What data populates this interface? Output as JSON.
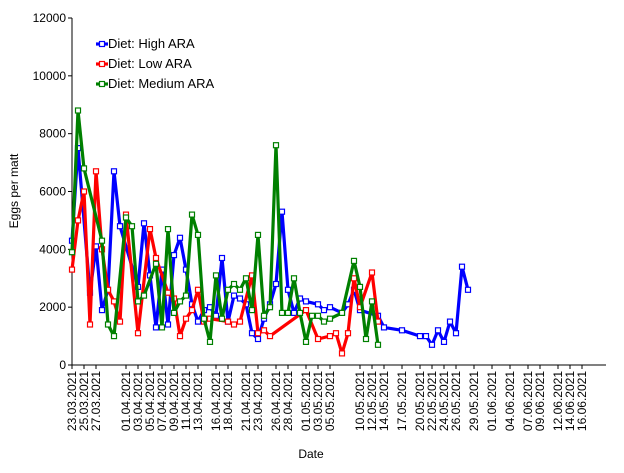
{
  "chart_data": {
    "type": "line",
    "xlabel": "Date",
    "ylabel": "Eggs per matt",
    "ylim": [
      0,
      12000
    ],
    "yticks": [
      0,
      2000,
      4000,
      6000,
      8000,
      10000,
      12000
    ],
    "xlim": [
      "2021-03-23",
      "2021-06-20"
    ],
    "xticks": [
      "23.03.2021",
      "25.03.2021",
      "27.03.2021",
      "01.04.2021",
      "03.04.2021",
      "05.04.2021",
      "07.04.2021",
      "09.04.2021",
      "11.04.2021",
      "13.04.2021",
      "16.04.2021",
      "18.04.2021",
      "21.04.2021",
      "23.04.2021",
      "26.04.2021",
      "28.04.2021",
      "01.05.2021",
      "03.05.2021",
      "05.05.2021",
      "10.05.2021",
      "12.05.2021",
      "14.05.2021",
      "17.05.2021",
      "20.05.2021",
      "22.05.2021",
      "24.05.2021",
      "26.05.2021",
      "29.05.2021",
      "01.06.2021",
      "04.06.2021",
      "07.06.2021",
      "09.06.2021",
      "12.06.2021",
      "14.06.2021",
      "16.06.2021"
    ],
    "grid": false,
    "legend_position": "top-left",
    "series": [
      {
        "name": "Diet: High ARA",
        "color": "#0000ff",
        "points": [
          [
            "2021-03-23",
            4300
          ],
          [
            "2021-03-24",
            7500
          ],
          [
            "2021-03-26",
            2500
          ],
          [
            "2021-03-27",
            4100
          ],
          [
            "2021-03-28",
            1900
          ],
          [
            "2021-03-29",
            2600
          ],
          [
            "2021-03-30",
            6700
          ],
          [
            "2021-03-31",
            4800
          ],
          [
            "2021-04-03",
            2700
          ],
          [
            "2021-04-04",
            4900
          ],
          [
            "2021-04-05",
            3100
          ],
          [
            "2021-04-06",
            1300
          ],
          [
            "2021-04-07",
            3300
          ],
          [
            "2021-04-08",
            1400
          ],
          [
            "2021-04-09",
            3800
          ],
          [
            "2021-04-10",
            4400
          ],
          [
            "2021-04-11",
            3300
          ],
          [
            "2021-04-12",
            2100
          ],
          [
            "2021-04-13",
            1500
          ],
          [
            "2021-04-14",
            1900
          ],
          [
            "2021-04-15",
            2000
          ],
          [
            "2021-04-16",
            1700
          ],
          [
            "2021-04-17",
            3700
          ],
          [
            "2021-04-18",
            1500
          ],
          [
            "2021-04-19",
            2400
          ],
          [
            "2021-04-20",
            2300
          ],
          [
            "2021-04-21",
            2100
          ],
          [
            "2021-04-22",
            1100
          ],
          [
            "2021-04-23",
            900
          ],
          [
            "2021-04-24",
            1600
          ],
          [
            "2021-04-25",
            2100
          ],
          [
            "2021-04-26",
            2800
          ],
          [
            "2021-04-27",
            5300
          ],
          [
            "2021-04-28",
            2600
          ],
          [
            "2021-04-29",
            1800
          ],
          [
            "2021-04-30",
            2300
          ],
          [
            "2021-05-01",
            2200
          ],
          [
            "2021-05-03",
            2100
          ],
          [
            "2021-05-04",
            1900
          ],
          [
            "2021-05-05",
            2000
          ],
          [
            "2021-05-07",
            1800
          ],
          [
            "2021-05-08",
            2100
          ],
          [
            "2021-05-09",
            2600
          ],
          [
            "2021-05-10",
            1900
          ],
          [
            "2021-05-13",
            1700
          ],
          [
            "2021-05-14",
            1300
          ],
          [
            "2021-05-17",
            1200
          ],
          [
            "2021-05-20",
            1000
          ],
          [
            "2021-05-21",
            1000
          ],
          [
            "2021-05-22",
            700
          ],
          [
            "2021-05-23",
            1200
          ],
          [
            "2021-05-24",
            800
          ],
          [
            "2021-05-25",
            1500
          ],
          [
            "2021-05-26",
            1100
          ],
          [
            "2021-05-27",
            3400
          ],
          [
            "2021-05-28",
            2600
          ]
        ]
      },
      {
        "name": "Diet: Low ARA",
        "color": "#ff0000",
        "points": [
          [
            "2021-03-23",
            3300
          ],
          [
            "2021-03-24",
            5000
          ],
          [
            "2021-03-25",
            6000
          ],
          [
            "2021-03-26",
            1400
          ],
          [
            "2021-03-27",
            6700
          ],
          [
            "2021-03-28",
            4000
          ],
          [
            "2021-03-29",
            2600
          ],
          [
            "2021-03-30",
            2200
          ],
          [
            "2021-03-31",
            1500
          ],
          [
            "2021-04-01",
            5200
          ],
          [
            "2021-04-03",
            1100
          ],
          [
            "2021-04-05",
            4700
          ],
          [
            "2021-04-06",
            3700
          ],
          [
            "2021-04-08",
            2500
          ],
          [
            "2021-04-09",
            2300
          ],
          [
            "2021-04-10",
            1000
          ],
          [
            "2021-04-11",
            1600
          ],
          [
            "2021-04-12",
            1900
          ],
          [
            "2021-04-13",
            2600
          ],
          [
            "2021-04-14",
            1500
          ],
          [
            "2021-04-15",
            1600
          ],
          [
            "2021-04-18",
            1500
          ],
          [
            "2021-04-19",
            1400
          ],
          [
            "2021-04-20",
            1500
          ],
          [
            "2021-04-22",
            3100
          ],
          [
            "2021-04-23",
            1100
          ],
          [
            "2021-04-24",
            1200
          ],
          [
            "2021-04-25",
            1000
          ],
          [
            "2021-05-01",
            1900
          ],
          [
            "2021-05-03",
            900
          ],
          [
            "2021-05-05",
            1000
          ],
          [
            "2021-05-06",
            1100
          ],
          [
            "2021-05-07",
            400
          ],
          [
            "2021-05-08",
            1100
          ],
          [
            "2021-05-09",
            3000
          ],
          [
            "2021-05-10",
            2000
          ],
          [
            "2021-05-12",
            3200
          ],
          [
            "2021-05-13",
            1500
          ]
        ]
      },
      {
        "name": "Diet: Medium ARA",
        "color": "#008000",
        "points": [
          [
            "2021-03-23",
            3900
          ],
          [
            "2021-03-24",
            8800
          ],
          [
            "2021-03-25",
            6800
          ],
          [
            "2021-03-28",
            4300
          ],
          [
            "2021-03-29",
            1400
          ],
          [
            "2021-03-30",
            1000
          ],
          [
            "2021-04-01",
            5100
          ],
          [
            "2021-04-02",
            4800
          ],
          [
            "2021-04-03",
            2200
          ],
          [
            "2021-04-04",
            2400
          ],
          [
            "2021-04-06",
            3500
          ],
          [
            "2021-04-07",
            1300
          ],
          [
            "2021-04-08",
            4700
          ],
          [
            "2021-04-09",
            1800
          ],
          [
            "2021-04-10",
            2200
          ],
          [
            "2021-04-11",
            2400
          ],
          [
            "2021-04-12",
            5200
          ],
          [
            "2021-04-13",
            4500
          ],
          [
            "2021-04-14",
            1600
          ],
          [
            "2021-04-15",
            800
          ],
          [
            "2021-04-16",
            3100
          ],
          [
            "2021-04-17",
            1600
          ],
          [
            "2021-04-18",
            2600
          ],
          [
            "2021-04-19",
            2800
          ],
          [
            "2021-04-20",
            2600
          ],
          [
            "2021-04-21",
            3000
          ],
          [
            "2021-04-22",
            1900
          ],
          [
            "2021-04-23",
            4500
          ],
          [
            "2021-04-24",
            1700
          ],
          [
            "2021-04-25",
            2000
          ],
          [
            "2021-04-26",
            7600
          ],
          [
            "2021-04-27",
            1800
          ],
          [
            "2021-04-28",
            1800
          ],
          [
            "2021-04-29",
            3000
          ],
          [
            "2021-04-30",
            1800
          ],
          [
            "2021-05-01",
            800
          ],
          [
            "2021-05-02",
            1700
          ],
          [
            "2021-05-03",
            1700
          ],
          [
            "2021-05-04",
            1500
          ],
          [
            "2021-05-05",
            1600
          ],
          [
            "2021-05-07",
            1800
          ],
          [
            "2021-05-09",
            3600
          ],
          [
            "2021-05-10",
            2700
          ],
          [
            "2021-05-11",
            900
          ],
          [
            "2021-05-12",
            2200
          ],
          [
            "2021-05-13",
            700
          ]
        ]
      }
    ]
  }
}
